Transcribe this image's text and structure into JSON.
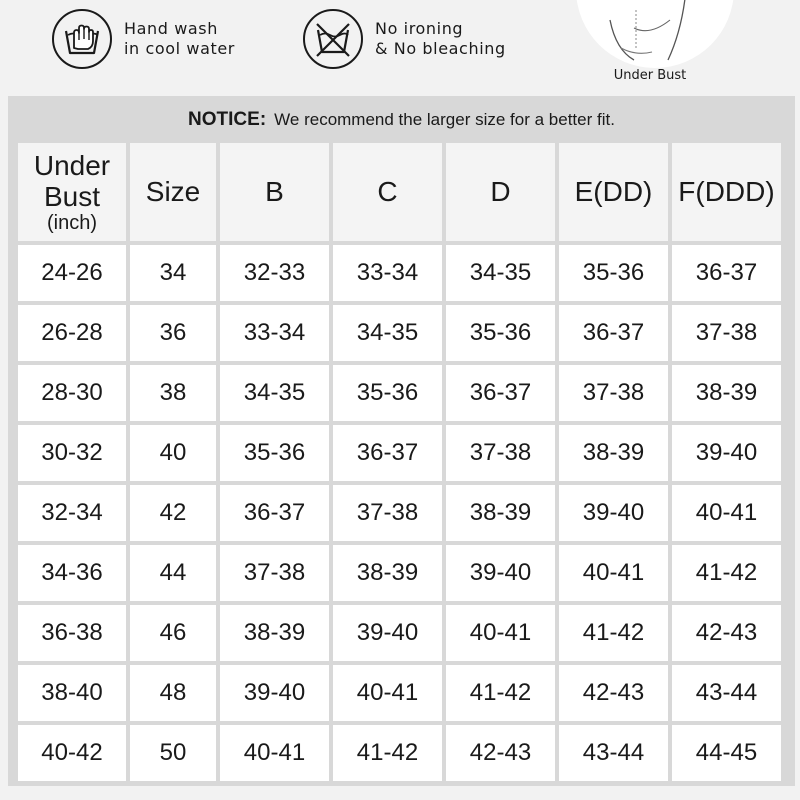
{
  "care": [
    {
      "icon": "hand-wash-icon",
      "lines": [
        "Hand wash",
        "in cool water"
      ]
    },
    {
      "icon": "no-ironing-icon",
      "lines": [
        "No ironing",
        "& No bleaching"
      ]
    }
  ],
  "diagram": {
    "caption": "Under Bust"
  },
  "notice": {
    "label": "NOTICE:",
    "text": "We recommend the larger size for a better fit."
  },
  "table": {
    "header": {
      "under_bust_line1": "Under",
      "under_bust_line2": "Bust",
      "under_bust_unit": "(inch)",
      "size": "Size",
      "b": "B",
      "c": "C",
      "d": "D",
      "e": "E(DD)",
      "f": "F(DDD)"
    },
    "rows": [
      [
        "24-26",
        "34",
        "32-33",
        "33-34",
        "34-35",
        "35-36",
        "36-37"
      ],
      [
        "26-28",
        "36",
        "33-34",
        "34-35",
        "35-36",
        "36-37",
        "37-38"
      ],
      [
        "28-30",
        "38",
        "34-35",
        "35-36",
        "36-37",
        "37-38",
        "38-39"
      ],
      [
        "30-32",
        "40",
        "35-36",
        "36-37",
        "37-38",
        "38-39",
        "39-40"
      ],
      [
        "32-34",
        "42",
        "36-37",
        "37-38",
        "38-39",
        "39-40",
        "40-41"
      ],
      [
        "34-36",
        "44",
        "37-38",
        "38-39",
        "39-40",
        "40-41",
        "41-42"
      ],
      [
        "36-38",
        "46",
        "38-39",
        "39-40",
        "40-41",
        "41-42",
        "42-43"
      ],
      [
        "38-40",
        "48",
        "39-40",
        "40-41",
        "41-42",
        "42-43",
        "43-44"
      ],
      [
        "40-42",
        "50",
        "40-41",
        "41-42",
        "42-43",
        "43-44",
        "44-45"
      ]
    ]
  }
}
